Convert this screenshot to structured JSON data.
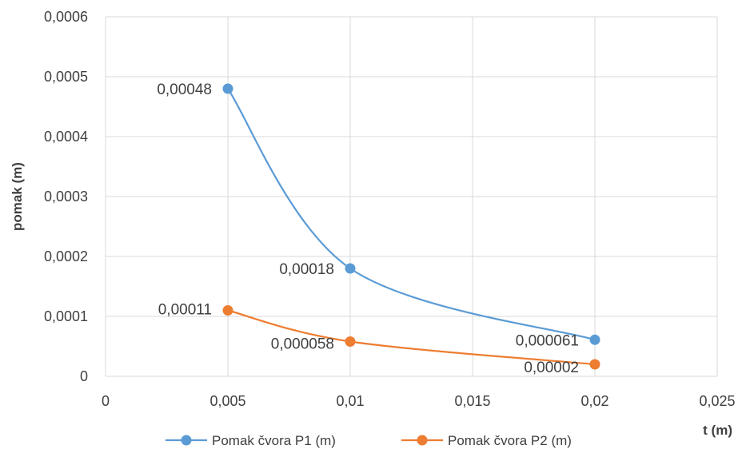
{
  "chart_data": {
    "type": "line",
    "xlabel": "t (m)",
    "ylabel": "pomak (m)",
    "xlim": [
      0,
      0.025
    ],
    "ylim": [
      0,
      0.0006
    ],
    "x_ticks": [
      "0",
      "0,005",
      "0,01",
      "0,015",
      "0,02",
      "0,025"
    ],
    "y_ticks": [
      "0",
      "0,0001",
      "0,0002",
      "0,0003",
      "0,0004",
      "0,0005",
      "0,0006"
    ],
    "grid": true,
    "smooth": true,
    "legend_position": "bottom",
    "series": [
      {
        "name": "Pomak čvora P1 (m)",
        "color": "#5b9bd5",
        "x": [
          0.005,
          0.01,
          0.02
        ],
        "y": [
          0.00048,
          0.00018,
          6.1e-05
        ],
        "labels": [
          "0,00048",
          "0,00018",
          "0,000061"
        ]
      },
      {
        "name": "Pomak čvora P2 (m)",
        "color": "#ed7d31",
        "x": [
          0.005,
          0.01,
          0.02
        ],
        "y": [
          0.00011,
          5.8e-05,
          2e-05
        ],
        "labels": [
          "0,00011",
          "0,000058",
          "0,00002"
        ]
      }
    ]
  }
}
